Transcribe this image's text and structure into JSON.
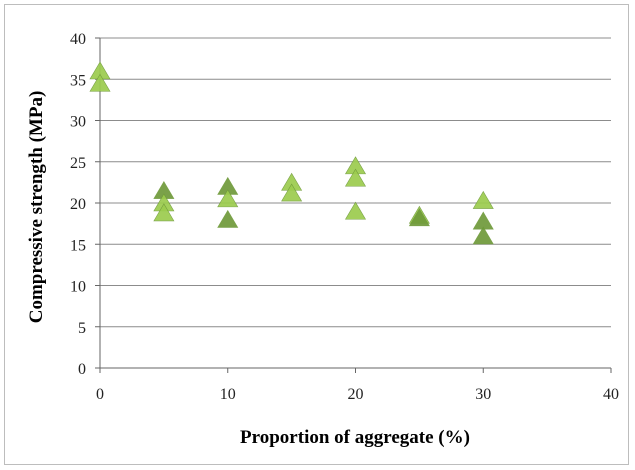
{
  "chart_data": {
    "type": "scatter",
    "title": "",
    "xlabel": "Proportion of aggregate (%)",
    "ylabel": "Compressive strength (MPa)",
    "xlim": [
      0,
      40
    ],
    "ylim": [
      0,
      40
    ],
    "xticks": [
      0,
      10,
      20,
      30,
      40
    ],
    "yticks": [
      0,
      5,
      10,
      15,
      20,
      25,
      30,
      35,
      40
    ],
    "grid": "horizontal",
    "legend": "none",
    "marker": "triangle",
    "colors": {
      "marker_light": "#9ccc4e",
      "marker_dark": "#6f9a3a",
      "grid": "#8c8c8c",
      "axis": "#666666"
    },
    "series": [
      {
        "points": [
          {
            "x": 0,
            "y": 36.0
          },
          {
            "x": 0,
            "y": 34.5
          },
          {
            "x": 5,
            "y": 21.5
          },
          {
            "x": 5,
            "y": 20.0
          },
          {
            "x": 5,
            "y": 18.8
          },
          {
            "x": 10,
            "y": 22.0
          },
          {
            "x": 10,
            "y": 20.5
          },
          {
            "x": 10,
            "y": 18.0
          },
          {
            "x": 15,
            "y": 22.5
          },
          {
            "x": 15,
            "y": 21.2
          },
          {
            "x": 20,
            "y": 24.5
          },
          {
            "x": 20,
            "y": 23.0
          },
          {
            "x": 20,
            "y": 19.0
          },
          {
            "x": 25,
            "y": 18.5
          },
          {
            "x": 25,
            "y": 18.2
          },
          {
            "x": 30,
            "y": 20.3
          },
          {
            "x": 30,
            "y": 17.8
          },
          {
            "x": 30,
            "y": 16.0
          }
        ]
      }
    ]
  }
}
